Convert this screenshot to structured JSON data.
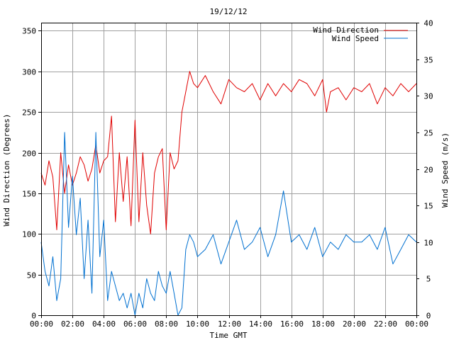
{
  "chart_data": {
    "type": "line",
    "title": "19/12/12",
    "xlabel": "Time GMT",
    "ylabel": "Wind Direction (Degrees)",
    "y2label": "Wind Speed (m/s)",
    "xlim": [
      0,
      24
    ],
    "ylim": [
      0,
      360
    ],
    "y2lim": [
      0,
      40
    ],
    "grid": true,
    "legend_position": "top-right",
    "x_ticks": [
      "00:00",
      "02:00",
      "04:00",
      "06:00",
      "08:00",
      "10:00",
      "12:00",
      "14:00",
      "16:00",
      "18:00",
      "20:00",
      "22:00",
      "00:00"
    ],
    "y_ticks": [
      0,
      50,
      100,
      150,
      200,
      250,
      300,
      350
    ],
    "y2_ticks": [
      0,
      5,
      10,
      15,
      20,
      25,
      30,
      35,
      40
    ],
    "series": [
      {
        "name": "Wind Direction",
        "axis": "left",
        "color": "#e00000",
        "x": [
          0,
          0.25,
          0.5,
          0.75,
          1.0,
          1.25,
          1.5,
          1.75,
          2.0,
          2.25,
          2.5,
          2.75,
          3.0,
          3.25,
          3.5,
          3.75,
          4.0,
          4.25,
          4.5,
          4.75,
          5.0,
          5.25,
          5.5,
          5.75,
          6.0,
          6.25,
          6.5,
          6.75,
          7.0,
          7.25,
          7.5,
          7.75,
          8.0,
          8.25,
          8.5,
          8.75,
          9.0,
          9.25,
          9.5,
          9.75,
          10.0,
          10.5,
          11.0,
          11.5,
          12.0,
          12.5,
          13.0,
          13.5,
          14.0,
          14.5,
          15.0,
          15.5,
          16.0,
          16.5,
          17.0,
          17.5,
          18.0,
          18.25,
          18.5,
          19.0,
          19.5,
          20.0,
          20.5,
          21.0,
          21.5,
          22.0,
          22.5,
          23.0,
          23.5,
          24.0
        ],
        "values": [
          175,
          160,
          190,
          170,
          105,
          200,
          150,
          185,
          160,
          175,
          195,
          185,
          165,
          180,
          210,
          175,
          190,
          195,
          245,
          115,
          200,
          140,
          195,
          110,
          240,
          115,
          200,
          135,
          100,
          175,
          195,
          205,
          105,
          200,
          180,
          190,
          250,
          275,
          300,
          285,
          280,
          295,
          275,
          260,
          290,
          280,
          275,
          285,
          265,
          285,
          270,
          285,
          275,
          290,
          285,
          270,
          290,
          250,
          275,
          280,
          265,
          280,
          275,
          285,
          260,
          280,
          270,
          285,
          275,
          285
        ]
      },
      {
        "name": "Wind Speed",
        "axis": "right",
        "color": "#0070d0",
        "x": [
          0,
          0.25,
          0.5,
          0.75,
          1.0,
          1.25,
          1.5,
          1.75,
          2.0,
          2.25,
          2.5,
          2.75,
          3.0,
          3.25,
          3.5,
          3.75,
          4.0,
          4.25,
          4.5,
          4.75,
          5.0,
          5.25,
          5.5,
          5.75,
          6.0,
          6.25,
          6.5,
          6.75,
          7.0,
          7.25,
          7.5,
          7.75,
          8.0,
          8.25,
          8.5,
          8.75,
          9.0,
          9.25,
          9.5,
          9.75,
          10.0,
          10.5,
          11.0,
          11.5,
          12.0,
          12.5,
          13.0,
          13.5,
          14.0,
          14.5,
          15.0,
          15.5,
          16.0,
          16.5,
          17.0,
          17.5,
          18.0,
          18.5,
          19.0,
          19.5,
          20.0,
          20.5,
          21.0,
          21.5,
          22.0,
          22.5,
          23.0,
          23.5,
          24.0
        ],
        "values": [
          10,
          6,
          4,
          8,
          2,
          5,
          25,
          12,
          19,
          11,
          16,
          5,
          13,
          3,
          25,
          8,
          13,
          2,
          6,
          4,
          2,
          3,
          1,
          3,
          0,
          3,
          1,
          5,
          3,
          2,
          6,
          4,
          3,
          6,
          3,
          0,
          1,
          9,
          11,
          10,
          8,
          9,
          11,
          7,
          10,
          13,
          9,
          10,
          12,
          8,
          11,
          17,
          10,
          11,
          9,
          12,
          8,
          10,
          9,
          11,
          10,
          10,
          11,
          9,
          12,
          7,
          9,
          11,
          10
        ]
      }
    ]
  }
}
